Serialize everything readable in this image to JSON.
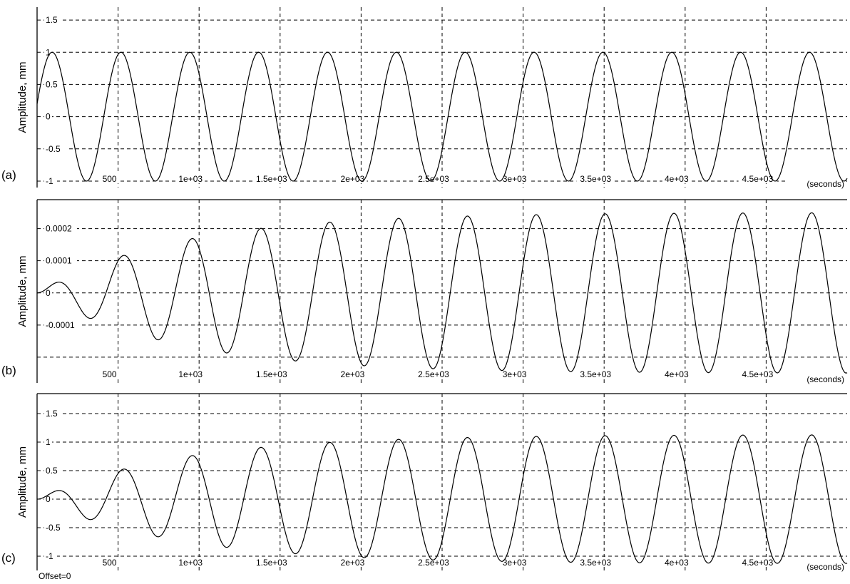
{
  "chart_data": [
    {
      "type": "line",
      "panel_label": "(a)",
      "ylabel": "Amplitude, mm",
      "xlabel_unit": "(seconds)",
      "xlim": [
        0,
        5000
      ],
      "ylim": [
        -1.1,
        1.7
      ],
      "x_ticks": [
        0,
        500,
        1000,
        1500,
        2000,
        2500,
        3000,
        3500,
        4000,
        4500
      ],
      "x_tick_labels": [
        "",
        "500",
        "1e+03",
        "1.5e+03",
        "2e+03",
        "2.5e+03",
        "3e+03",
        "3.5e+03",
        "4e+03",
        "4.5e+03"
      ],
      "y_ticks": [
        1.5,
        1,
        0.5,
        0,
        -0.5,
        -1
      ],
      "y_tick_labels": [
        "1.5",
        "1",
        "0.5",
        "0",
        "-0.5",
        "-1"
      ],
      "grid": true,
      "series": [
        {
          "form": "sine",
          "amplitude": 1.0,
          "period_s": 425,
          "phase_rad": 0.2,
          "growth_tau_s": 0
        }
      ]
    },
    {
      "type": "line",
      "panel_label": "(b)",
      "ylabel": "Amplitude, mm",
      "xlabel_unit": "(seconds)",
      "xlim": [
        0,
        5000
      ],
      "ylim": [
        -0.00028,
        0.00029
      ],
      "x_ticks": [
        0,
        500,
        1000,
        1500,
        2000,
        2500,
        3000,
        3500,
        4000,
        4500
      ],
      "x_tick_labels": [
        "",
        "500",
        "1e+03",
        "1.5e+03",
        "2e+03",
        "2.5e+03",
        "3e+03",
        "3.5e+03",
        "4e+03",
        "4.5e+03"
      ],
      "y_ticks": [
        0.0002,
        0.0001,
        0,
        -0.0001,
        -0.0002
      ],
      "y_tick_labels": [
        "0.0002",
        "0.0001",
        "0",
        "-0.0001",
        ""
      ],
      "grid": true,
      "series": [
        {
          "form": "sine",
          "amplitude": 0.00025,
          "period_s": 425,
          "phase_rad": 0.0,
          "growth_tau_s": 850
        }
      ]
    },
    {
      "type": "line",
      "panel_label": "(c)",
      "ylabel": "Amplitude, mm",
      "xlabel_unit": "(seconds)",
      "footer_text": "Offset=0",
      "xlim": [
        0,
        5000
      ],
      "ylim": [
        -1.25,
        1.85
      ],
      "x_ticks": [
        0,
        500,
        1000,
        1500,
        2000,
        2500,
        3000,
        3500,
        4000,
        4500
      ],
      "x_tick_labels": [
        "",
        "500",
        "1e+03",
        "1.5e+03",
        "2e+03",
        "2.5e+03",
        "3e+03",
        "3.5e+03",
        "4e+03",
        "4.5e+03"
      ],
      "y_ticks": [
        1.5,
        1,
        0.5,
        0,
        -0.5,
        -1
      ],
      "y_tick_labels": [
        "1.5",
        "1",
        "0.5",
        "0",
        "-0.5",
        "-1"
      ],
      "grid": true,
      "series": [
        {
          "form": "sine",
          "amplitude": 1.13,
          "period_s": 425,
          "phase_rad": 0.0,
          "growth_tau_s": 850
        }
      ]
    }
  ]
}
